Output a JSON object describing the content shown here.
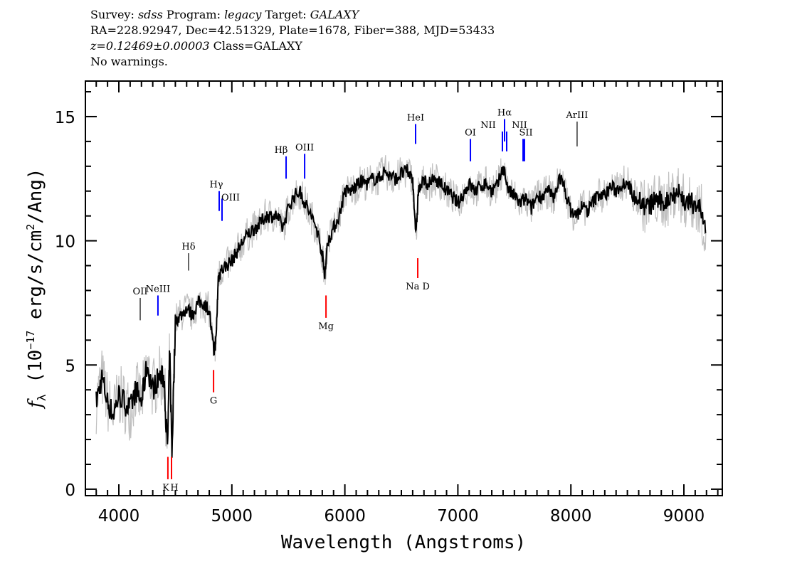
{
  "header": {
    "survey_label": "Survey:",
    "survey": "sdss",
    "program_label": "Program:",
    "program": "legacy",
    "target_label": "Target:",
    "target": "GALAXY",
    "line2": "RA=228.92947, Dec=42.51329, Plate=1678, Fiber=388, MJD=53433",
    "redshift": "z=0.12469±0.00003",
    "class": "Class=GALAXY",
    "warnings": "No warnings."
  },
  "chart_data": {
    "type": "line",
    "xlabel": "Wavelength (Angstroms)",
    "ylabel": "f_λ (10^-17 erg/s/cm^2/Ang)",
    "ylabel_parts": {
      "f": "f",
      "sub": "λ",
      "pre": " (10",
      "exp1": "−17",
      "mid": " erg/s/cm",
      "exp2": "2",
      "post": "/Ang)"
    },
    "xlim": [
      3704,
      9340
    ],
    "ylim": [
      -0.26,
      16.43
    ],
    "xticks": [
      4000,
      5000,
      6000,
      7000,
      8000,
      9000
    ],
    "xtick_labels": [
      "4000",
      "5000",
      "6000",
      "7000",
      "8000",
      "9000"
    ],
    "yticks": [
      0,
      5,
      10,
      15
    ],
    "ytick_labels": [
      "0",
      "5",
      "10",
      "15"
    ],
    "x_minor_step": 100,
    "y_minor_step": 1,
    "grid": false,
    "colors": {
      "smoothed": "#000000",
      "raw": "#c0c0c0",
      "emission": "#0000ff",
      "absorption": "#ff0000",
      "other": "#000000"
    },
    "raw_spread": 0.8,
    "series": [
      {
        "kind": "smoothed",
        "x": [
          3800,
          3850,
          3900,
          3950,
          4000,
          4050,
          4100,
          4150,
          4200,
          4250,
          4300,
          4350,
          4400,
          4430,
          4450,
          4470,
          4500,
          4550,
          4600,
          4650,
          4700,
          4750,
          4800,
          4840,
          4860,
          4880,
          4900,
          4950,
          5000,
          5050,
          5100,
          5150,
          5200,
          5250,
          5300,
          5350,
          5400,
          5450,
          5500,
          5550,
          5600,
          5650,
          5700,
          5750,
          5800,
          5820,
          5850,
          5900,
          5950,
          6000,
          6050,
          6100,
          6150,
          6200,
          6250,
          6300,
          6350,
          6400,
          6450,
          6500,
          6550,
          6600,
          6630,
          6650,
          6700,
          6750,
          6800,
          6850,
          6900,
          6950,
          7000,
          7050,
          7100,
          7150,
          7200,
          7250,
          7300,
          7350,
          7400,
          7450,
          7500,
          7550,
          7600,
          7650,
          7700,
          7750,
          7800,
          7850,
          7900,
          7950,
          8000,
          8050,
          8100,
          8150,
          8200,
          8250,
          8300,
          8350,
          8400,
          8450,
          8500,
          8550,
          8600,
          8650,
          8700,
          8750,
          8800,
          8850,
          8900,
          8950,
          9000,
          9050,
          9100,
          9150,
          9200
        ],
        "y": [
          3.5,
          4.5,
          3.5,
          3.0,
          3.8,
          3.5,
          3.2,
          4.0,
          3.5,
          5.0,
          4.0,
          4.5,
          4.5,
          1.5,
          5.5,
          1.5,
          6.8,
          7.0,
          7.3,
          7.0,
          7.5,
          7.5,
          7.2,
          5.5,
          6.0,
          8.5,
          8.8,
          9.0,
          9.2,
          9.6,
          10.0,
          10.3,
          10.5,
          10.7,
          11.0,
          11.0,
          11.0,
          10.5,
          11.3,
          11.8,
          12.0,
          11.5,
          11.0,
          10.5,
          9.5,
          8.6,
          10.0,
          10.5,
          11.0,
          12.0,
          12.0,
          12.2,
          12.4,
          12.3,
          12.5,
          12.5,
          12.8,
          12.6,
          12.5,
          12.7,
          12.8,
          12.5,
          10.2,
          12.0,
          12.4,
          12.3,
          12.5,
          12.3,
          12.0,
          11.8,
          11.5,
          11.9,
          12.3,
          12.0,
          12.2,
          12.3,
          12.0,
          12.2,
          13.0,
          12.0,
          11.8,
          11.5,
          11.7,
          11.3,
          11.8,
          11.8,
          12.0,
          11.7,
          12.6,
          12.0,
          11.2,
          11.0,
          11.4,
          11.2,
          11.6,
          11.9,
          11.8,
          12.2,
          12.0,
          12.3,
          12.4,
          11.8,
          11.7,
          11.4,
          11.4,
          11.7,
          11.5,
          11.6,
          11.9,
          12.0,
          11.6,
          11.5,
          11.5,
          11.3,
          10.0
        ]
      }
    ],
    "lines": [
      {
        "label": "OII",
        "wavelength": 4189,
        "type": "other",
        "top": 7.7,
        "bottom": 6.8
      },
      {
        "label": "NeIII",
        "wavelength": 4346,
        "type": "emission",
        "top": 7.8,
        "bottom": 6.99
      },
      {
        "label": "Hδ",
        "wavelength": 4617,
        "type": "other",
        "top": 9.5,
        "bottom": 8.8
      },
      {
        "label": "Hγ",
        "wavelength": 4888,
        "type": "emission",
        "top": 12.0,
        "bottom": 11.2
      },
      {
        "label": "OIII",
        "wavelength": 4913,
        "type": "emission",
        "top": 11.7,
        "bottom": 10.8
      },
      {
        "label": "Hβ",
        "wavelength": 5480,
        "type": "emission",
        "top": 13.4,
        "bottom": 12.5
      },
      {
        "label": "OIII",
        "wavelength": 5644,
        "type": "emission",
        "top": 13.5,
        "bottom": 12.5
      },
      {
        "label": "HeI",
        "wavelength": 6626,
        "type": "emission",
        "top": 14.7,
        "bottom": 13.9
      },
      {
        "label": "OI",
        "wavelength": 7111,
        "type": "emission",
        "top": 14.1,
        "bottom": 13.2
      },
      {
        "label": "NII",
        "wavelength": 7394,
        "type": "emission",
        "top": 14.4,
        "bottom": 13.6
      },
      {
        "label": "Hα",
        "wavelength": 7413,
        "type": "emission",
        "top": 14.9,
        "bottom": 14.0
      },
      {
        "label": "NII",
        "wavelength": 7432,
        "type": "emission",
        "top": 14.4,
        "bottom": 13.6
      },
      {
        "label": "SII",
        "wavelength": 7577,
        "type": "emission",
        "top": 14.1,
        "bottom": 13.2
      },
      {
        "label": "",
        "wavelength": 7589,
        "type": "emission",
        "top": 14.1,
        "bottom": 13.2
      },
      {
        "label": "ArIII",
        "wavelength": 8055,
        "type": "other",
        "top": 14.8,
        "bottom": 13.8
      },
      {
        "label": "K",
        "wavelength": 4434,
        "type": "absorption",
        "top": 1.3,
        "bottom": 0.4
      },
      {
        "label": "H",
        "wavelength": 4466,
        "type": "absorption",
        "top": 1.3,
        "bottom": 0.4
      },
      {
        "label": "G",
        "wavelength": 4838,
        "type": "absorption",
        "top": 4.8,
        "bottom": 3.9
      },
      {
        "label": "Mg",
        "wavelength": 5833,
        "type": "absorption",
        "top": 7.8,
        "bottom": 6.9
      },
      {
        "label": "Na D",
        "wavelength": 6645,
        "type": "absorption",
        "top": 9.3,
        "bottom": 8.5
      }
    ]
  }
}
